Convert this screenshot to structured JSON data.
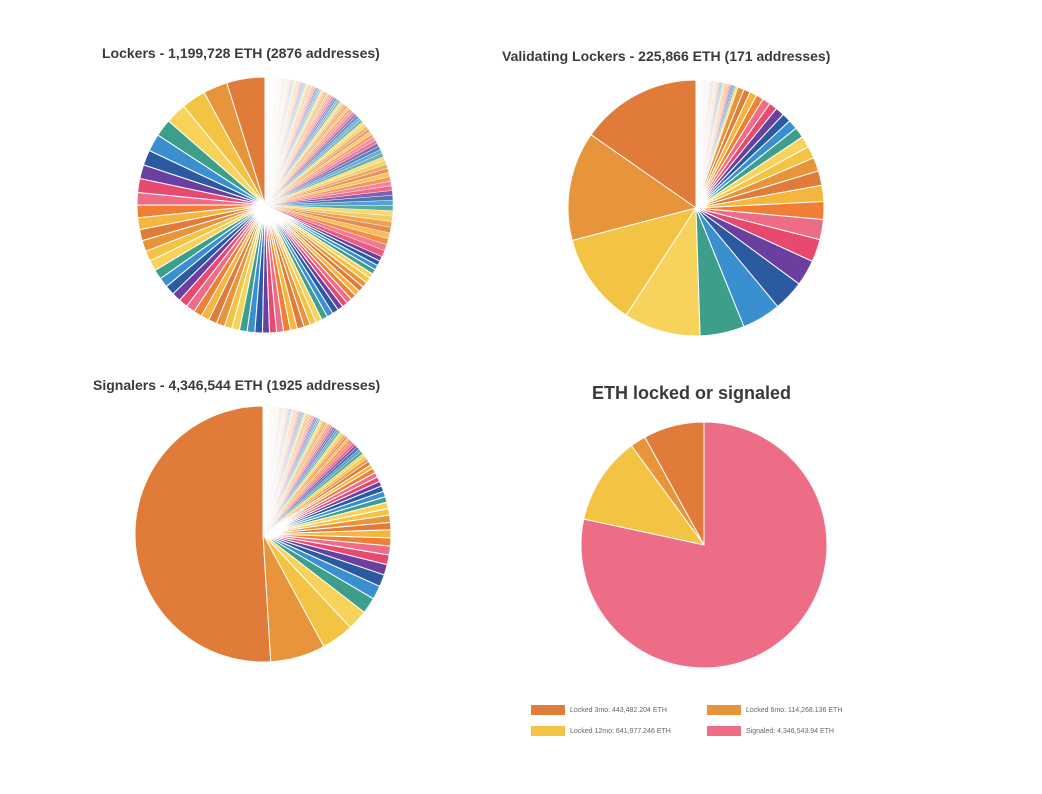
{
  "chart_data": [
    {
      "type": "pie",
      "title": "Lockers - 1,199,728 ETH (2876 addresses)",
      "slices": {
        "start_major": [
          0.055,
          0.035,
          0.035,
          0.03,
          0.025,
          0.025,
          0.022,
          0.02,
          0.02,
          0.018,
          0.018,
          0.017,
          0.016,
          0.016,
          0.015,
          0.015,
          0.014,
          0.014,
          0.014,
          0.013,
          0.013,
          0.013,
          0.012,
          0.012,
          0.012,
          0.012,
          0.011,
          0.011,
          0.011,
          0.011,
          0.011,
          0.01,
          0.01,
          0.01,
          0.01,
          0.01,
          0.01,
          0.009,
          0.009,
          0.009,
          0.009,
          0.009,
          0.009,
          0.008,
          0.008,
          0.008,
          0.008,
          0.008,
          0.008,
          0.008,
          0.008,
          0.007,
          0.007,
          0.007,
          0.007,
          0.007
        ],
        "tail_count": 160,
        "tail_total": 0.36
      }
    },
    {
      "type": "pie",
      "title": "Validating Lockers - 225,866 ETH (171 addresses)",
      "slices": {
        "start_major": [
          0.15,
          0.135,
          0.115,
          0.095,
          0.055,
          0.048,
          0.038,
          0.032,
          0.028,
          0.025,
          0.022,
          0.02,
          0.018,
          0.017,
          0.015,
          0.014,
          0.013,
          0.012,
          0.011,
          0.011,
          0.01,
          0.01,
          0.009,
          0.009,
          0.008,
          0.008
        ],
        "tail_count": 70,
        "tail_total": 0.052,
        "order": "descending-from-left"
      }
    },
    {
      "type": "pie",
      "title": "Signalers - 4,346,544 ETH (1925 addresses)",
      "slices": {
        "start_major": [
          0.5,
          0.068,
          0.04,
          0.025,
          0.02,
          0.017,
          0.015,
          0.013,
          0.012,
          0.011,
          0.01,
          0.01,
          0.009,
          0.009,
          0.008,
          0.008,
          0.007,
          0.007,
          0.007,
          0.006,
          0.006,
          0.006,
          0.006,
          0.005,
          0.005
        ],
        "tail_count": 120,
        "tail_total": 0.151
      }
    },
    {
      "type": "pie",
      "title": "ETH locked or signaled",
      "categories": [
        "Locked 3mo: 443,482.204 ETH",
        "Locked 6mo: 114,268.136 ETH",
        "Locked 12mo: 641,977.246 ETH",
        "Signaled: 4,346,543.94 ETH"
      ],
      "values": [
        443482.204,
        114268.136,
        641977.246,
        4346543.94
      ],
      "colors": [
        "#e07b39",
        "#e8943a",
        "#f3c443",
        "#ee6d86"
      ],
      "legend": "bottom"
    }
  ],
  "palette": [
    "#e07b39",
    "#e8943a",
    "#f3c443",
    "#f7d35c",
    "#3d9e8c",
    "#3a8fd1",
    "#2c5aa0",
    "#6b3fa0",
    "#e84a6f",
    "#ee6d86",
    "#f07f35",
    "#f5b63d"
  ]
}
